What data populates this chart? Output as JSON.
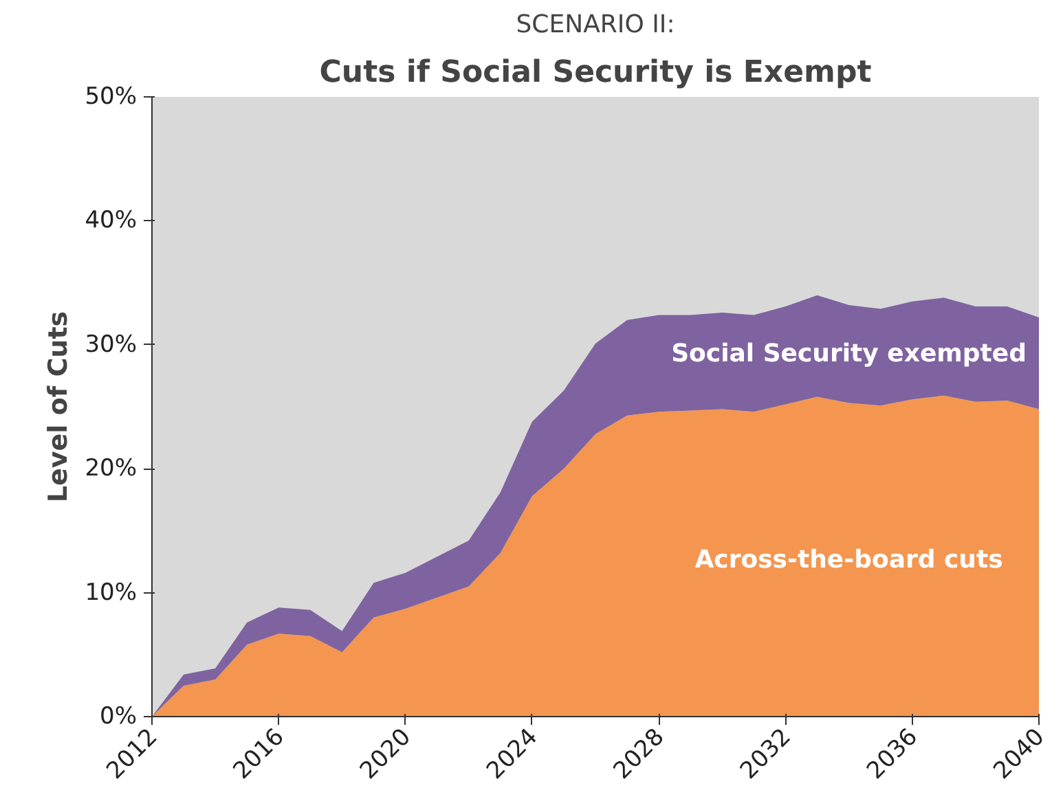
{
  "chart_data": {
    "type": "area",
    "title": "Cuts if Social Security is Exempt",
    "subtitle": "SCENARIO II:",
    "ylabel": "Level of Cuts",
    "stacked": true,
    "x": [
      2012,
      2013,
      2014,
      2015,
      2016,
      2017,
      2018,
      2019,
      2020,
      2021,
      2022,
      2023,
      2024,
      2025,
      2026,
      2027,
      2028,
      2029,
      2030,
      2031,
      2032,
      2033,
      2034,
      2035,
      2036,
      2037,
      2038,
      2039,
      2040
    ],
    "series": [
      {
        "name": "Across-the-board cuts",
        "color": "#f4964f",
        "values": [
          0,
          2.5,
          3.0,
          5.8,
          6.7,
          6.5,
          5.2,
          8.0,
          8.7,
          9.6,
          10.5,
          13.2,
          17.8,
          20.0,
          22.8,
          24.3,
          24.6,
          24.7,
          24.8,
          24.6,
          25.2,
          25.8,
          25.3,
          25.1,
          25.6,
          25.9,
          25.4,
          25.5,
          24.8
        ]
      },
      {
        "name": "Social Security exempted",
        "color": "#7f63a0",
        "values": [
          0,
          0.9,
          0.9,
          1.8,
          2.1,
          2.1,
          1.7,
          2.8,
          2.9,
          3.3,
          3.7,
          4.9,
          6.0,
          6.3,
          7.3,
          7.7,
          7.8,
          7.7,
          7.8,
          7.8,
          7.9,
          8.2,
          7.9,
          7.8,
          7.9,
          7.9,
          7.7,
          7.6,
          7.4
        ]
      }
    ],
    "xlim": [
      2012,
      2040
    ],
    "xticks": [
      2012,
      2016,
      2020,
      2024,
      2028,
      2032,
      2036,
      2040
    ],
    "ylim": [
      0,
      50
    ],
    "yticks": [
      {
        "value": 0,
        "label": "0%"
      },
      {
        "value": 10,
        "label": "10%"
      },
      {
        "value": 20,
        "label": "20%"
      },
      {
        "value": 30,
        "label": "30%"
      },
      {
        "value": 40,
        "label": "40%"
      },
      {
        "value": 50,
        "label": "50%"
      }
    ],
    "grid": false
  }
}
